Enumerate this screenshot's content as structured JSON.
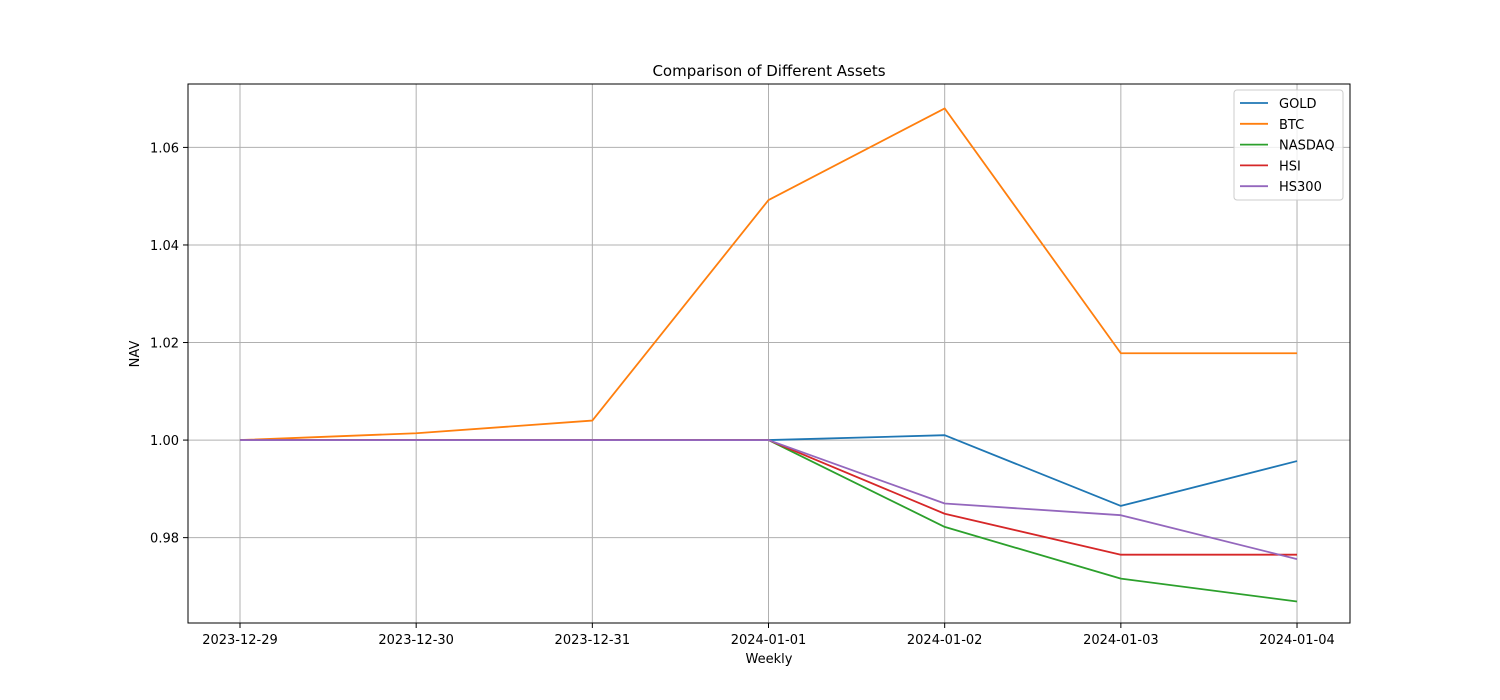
{
  "chart_data": {
    "type": "line",
    "title": "Comparison of Different Assets",
    "xlabel": "Weekly",
    "ylabel": "NAV",
    "categories": [
      "2023-12-29",
      "2023-12-30",
      "2023-12-31",
      "2024-01-01",
      "2024-01-02",
      "2024-01-03",
      "2024-01-04"
    ],
    "y_ticks": [
      "0.98",
      "1.00",
      "1.02",
      "1.04",
      "1.06"
    ],
    "y_tick_values": [
      0.98,
      1.0,
      1.02,
      1.04,
      1.06
    ],
    "ylim": [
      0.9625,
      1.073
    ],
    "grid": true,
    "legend_position": "top-right",
    "series": [
      {
        "name": "GOLD",
        "color": "#1f77b4",
        "values": [
          1.0,
          1.0,
          1.0,
          1.0,
          1.001,
          0.9865,
          0.9957
        ]
      },
      {
        "name": "BTC",
        "color": "#ff7f0e",
        "values": [
          1.0,
          1.0014,
          1.004,
          1.0492,
          1.068,
          1.0178,
          1.0178
        ]
      },
      {
        "name": "NASDAQ",
        "color": "#2ca02c",
        "values": [
          1.0,
          1.0,
          1.0,
          1.0,
          0.9822,
          0.9716,
          0.9669
        ]
      },
      {
        "name": "HSI",
        "color": "#d62728",
        "values": [
          1.0,
          1.0,
          1.0,
          1.0,
          0.9849,
          0.9765,
          0.9765
        ]
      },
      {
        "name": "HS300",
        "color": "#9467bd",
        "values": [
          1.0,
          1.0,
          1.0,
          1.0,
          0.987,
          0.9846,
          0.9756
        ]
      }
    ]
  }
}
